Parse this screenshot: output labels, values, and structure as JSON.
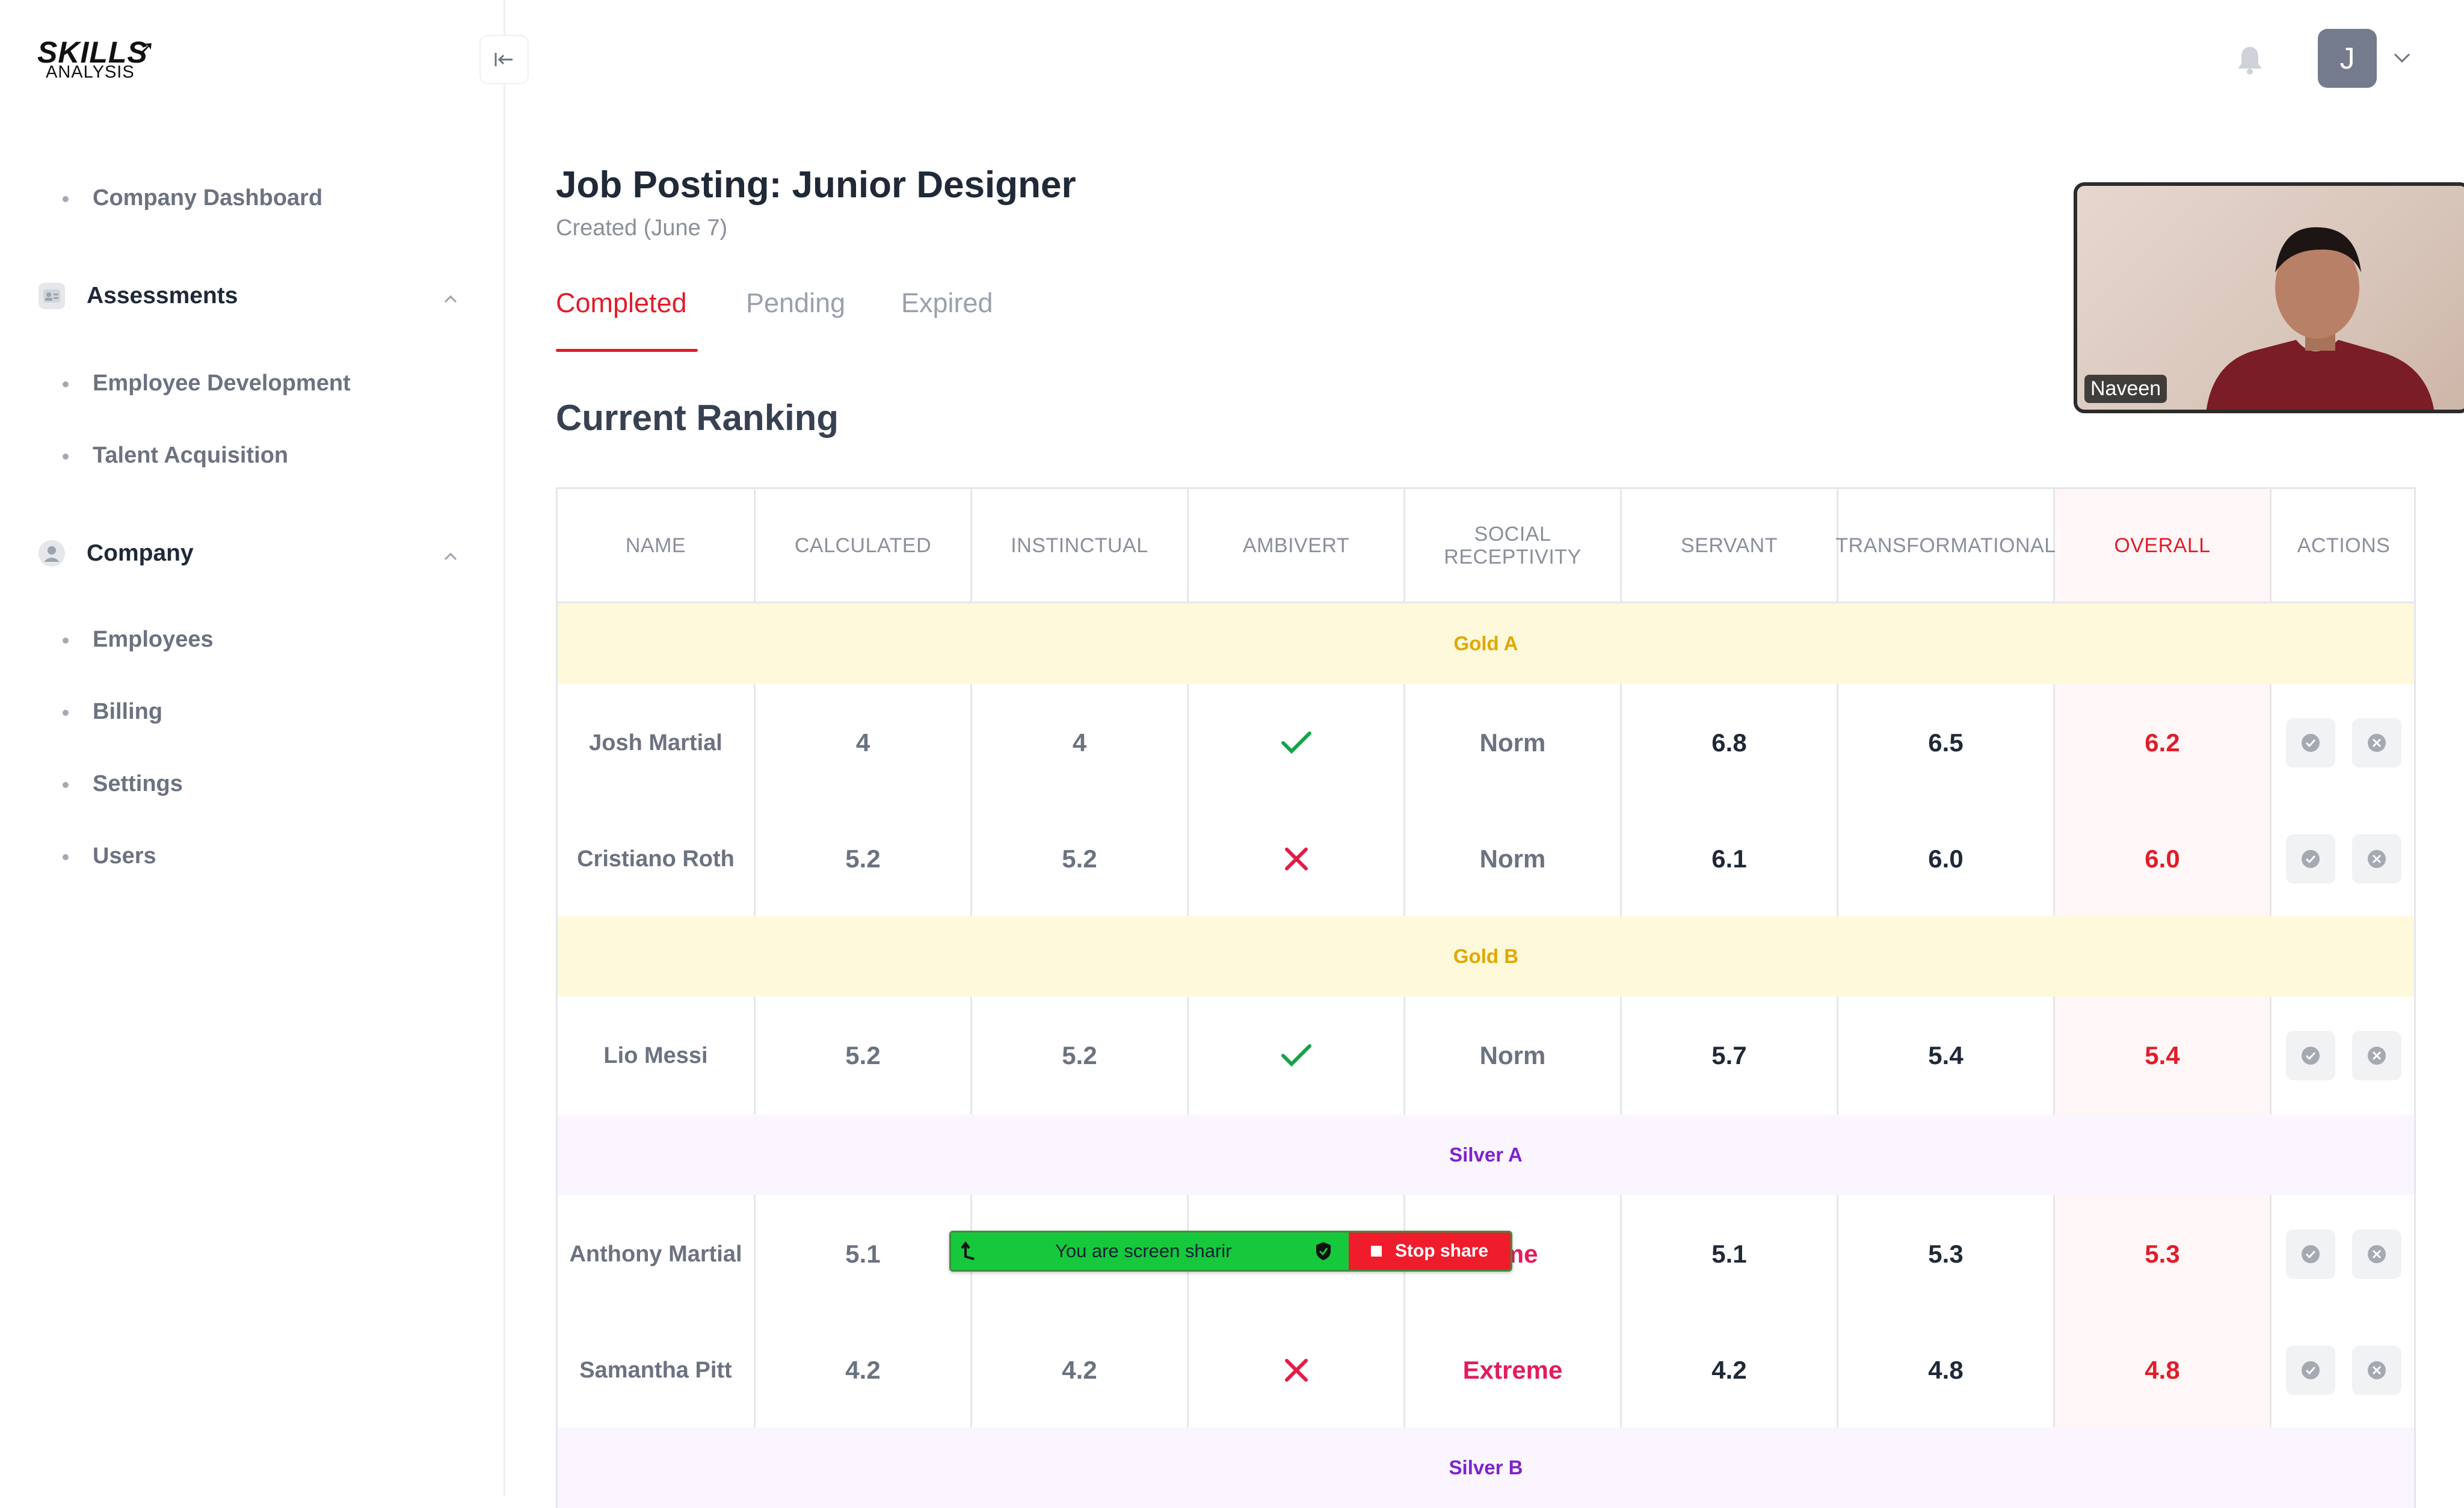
{
  "logo": {
    "line1": "SKILLS",
    "line2": "ANALYSIS"
  },
  "sidebar": {
    "company_dashboard": "Company Dashboard",
    "assessments": {
      "label": "Assessments",
      "items": [
        "Employee Development",
        "Talent Acquisition"
      ]
    },
    "company": {
      "label": "Company",
      "items": [
        "Employees",
        "Billing",
        "Settings",
        "Users"
      ]
    }
  },
  "header": {
    "avatar_initial": "J"
  },
  "page": {
    "title": "Job Posting: Junior Designer",
    "subtitle": "Created (June 7)",
    "tabs": [
      "Completed",
      "Pending",
      "Expired"
    ],
    "active_tab": "Completed",
    "section_title": "Current Ranking"
  },
  "table": {
    "columns": [
      "NAME",
      "CALCULATED",
      "INSTINCTUAL",
      "AMBIVERT",
      "SOCIAL RECEPTIVITY",
      "SERVANT",
      "TRANSFORMATIONAL",
      "OVERALL",
      "ACTIONS"
    ],
    "groups": [
      {
        "label": "Gold A",
        "tier": "gold",
        "rows": [
          {
            "name": "Josh Martial",
            "calculated": "4",
            "instinctual": "4",
            "ambivert": "check",
            "social": "Norm",
            "servant": "6.8",
            "transformational": "6.5",
            "overall": "6.2"
          },
          {
            "name": "Cristiano Roth",
            "calculated": "5.2",
            "instinctual": "5.2",
            "ambivert": "cross",
            "social": "Norm",
            "servant": "6.1",
            "transformational": "6.0",
            "overall": "6.0"
          }
        ]
      },
      {
        "label": "Gold B",
        "tier": "gold",
        "rows": [
          {
            "name": "Lio Messi",
            "calculated": "5.2",
            "instinctual": "5.2",
            "ambivert": "check",
            "social": "Norm",
            "servant": "5.7",
            "transformational": "5.4",
            "overall": "5.4"
          }
        ]
      },
      {
        "label": "Silver A",
        "tier": "silver",
        "rows": [
          {
            "name": "Anthony Martial",
            "calculated": "5.1",
            "instinctual": "",
            "ambivert": "",
            "social": "eme",
            "servant": "5.1",
            "transformational": "5.3",
            "overall": "5.3"
          },
          {
            "name": "Samantha Pitt",
            "calculated": "4.2",
            "instinctual": "4.2",
            "ambivert": "cross",
            "social": "Extreme",
            "servant": "4.2",
            "transformational": "4.8",
            "overall": "4.8"
          }
        ]
      },
      {
        "label": "Silver B",
        "tier": "silver",
        "rows": []
      }
    ]
  },
  "video": {
    "participant": "Naveen"
  },
  "screenshare": {
    "message": "You are screen sharir",
    "stop_label": "Stop share"
  },
  "colors": {
    "accent": "#e11d2a",
    "gold_bg": "#fff9db",
    "gold_text": "#e0a800",
    "silver_bg": "#faf5ff",
    "silver_text": "#7e22ce",
    "check": "#16a34a",
    "cross": "#e11d48"
  }
}
